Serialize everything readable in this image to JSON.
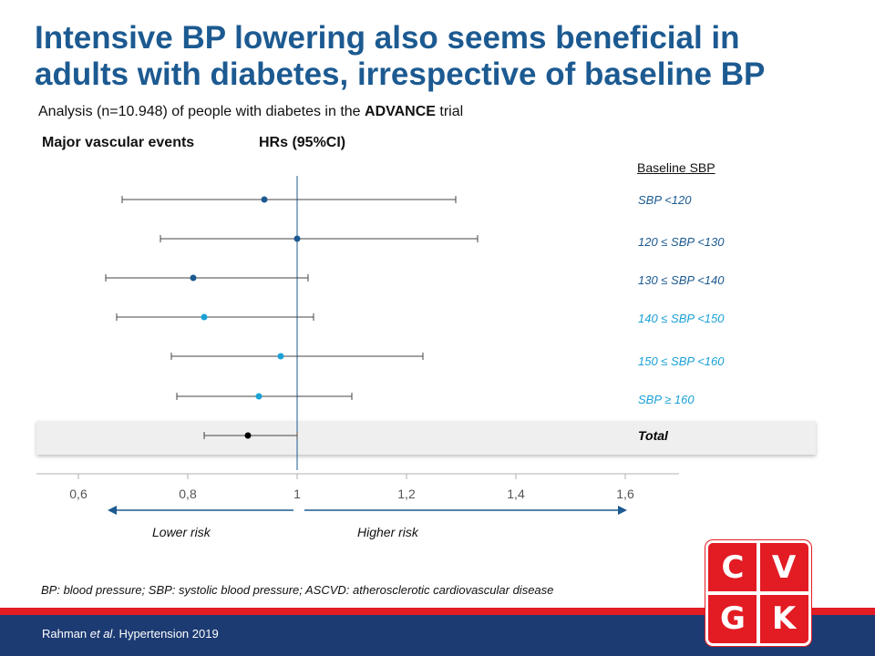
{
  "slide": {
    "title": "Intensive BP lowering also seems beneficial in\nadults with diabetes, irrespective of baseline BP",
    "subtitle_pre": "Analysis (n=10.948) of people with diabetes in the ",
    "subtitle_bold": "ADVANCE",
    "subtitle_post": " trial",
    "header_left": "Major vascular events",
    "header_mid": "HRs (95%CI)",
    "legend_header": "Baseline SBP",
    "lower_risk": "Lower risk",
    "higher_risk": "Higher risk",
    "footnote": "BP: blood pressure; SBP: systolic blood pressure; ASCVD: atherosclerotic cardiovascular disease",
    "citation_author": "Rahman ",
    "citation_etal": "et al",
    "citation_rest": ". Hypertension 2019",
    "logo_letters": [
      "C",
      "V",
      "G",
      "K"
    ]
  },
  "colors": {
    "title": "#1c5a91",
    "dark_blue": "#1c5a91",
    "light_blue": "#1ba1d6",
    "black": "#000000",
    "red": "#e31b23",
    "navy": "#1d3b73"
  },
  "chart_data": {
    "type": "forest",
    "x_axis": {
      "ticks": [
        0.6,
        0.8,
        1.0,
        1.2,
        1.4,
        1.6
      ],
      "tick_labels": [
        "0,6",
        "0,8",
        "1",
        "1,2",
        "1,4",
        "1,6"
      ],
      "range": [
        0.6,
        1.7
      ],
      "reference_line": 1.0
    },
    "rows": [
      {
        "label": "SBP <120",
        "hr": 0.94,
        "lo": 0.68,
        "hi": 1.29,
        "color": "#1c5a91"
      },
      {
        "label": "120 ≤ SBP <130",
        "hr": 1.0,
        "lo": 0.75,
        "hi": 1.33,
        "color": "#1c5a91"
      },
      {
        "label": "130 ≤ SBP <140",
        "hr": 0.81,
        "lo": 0.65,
        "hi": 1.02,
        "color": "#1c5a91"
      },
      {
        "label": "140 ≤ SBP <150",
        "hr": 0.83,
        "lo": 0.67,
        "hi": 1.03,
        "color": "#1ba1d6"
      },
      {
        "label": "150 ≤ SBP <160",
        "hr": 0.97,
        "lo": 0.77,
        "hi": 1.23,
        "color": "#1ba1d6"
      },
      {
        "label": "SBP ≥ 160",
        "hr": 0.93,
        "lo": 0.78,
        "hi": 1.1,
        "color": "#1ba1d6"
      },
      {
        "label": "Total",
        "hr": 0.91,
        "lo": 0.83,
        "hi": 1.0,
        "color": "#000000"
      }
    ]
  }
}
